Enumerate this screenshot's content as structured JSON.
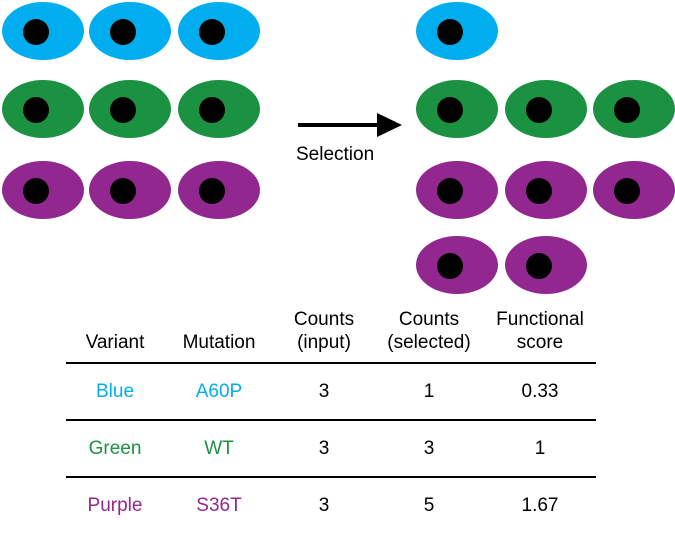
{
  "colors": {
    "blue": "#00aeef",
    "green": "#1b9142",
    "purple": "#91278f",
    "nucleus": "#000000"
  },
  "diagram": {
    "arrow_label": "Selection",
    "input_population": [
      {
        "variant": "blue",
        "count": 3
      },
      {
        "variant": "green",
        "count": 3
      },
      {
        "variant": "purple",
        "count": 3
      }
    ],
    "selected_population": [
      {
        "variant": "blue",
        "count": 1
      },
      {
        "variant": "green",
        "count": 3
      },
      {
        "variant": "purple",
        "count": 5
      }
    ]
  },
  "table": {
    "headers": [
      "Variant",
      "Mutation",
      "Counts\n(input)",
      "Counts\n(selected)",
      "Functional\nscore"
    ],
    "rows": [
      {
        "color": "blue",
        "variant": "Blue",
        "mutation": "A60P",
        "input": "3",
        "selected": "1",
        "score": "0.33"
      },
      {
        "color": "green",
        "variant": "Green",
        "mutation": "WT",
        "input": "3",
        "selected": "3",
        "score": "1"
      },
      {
        "color": "purple",
        "variant": "Purple",
        "mutation": "S36T",
        "input": "3",
        "selected": "5",
        "score": "1.67"
      }
    ]
  }
}
